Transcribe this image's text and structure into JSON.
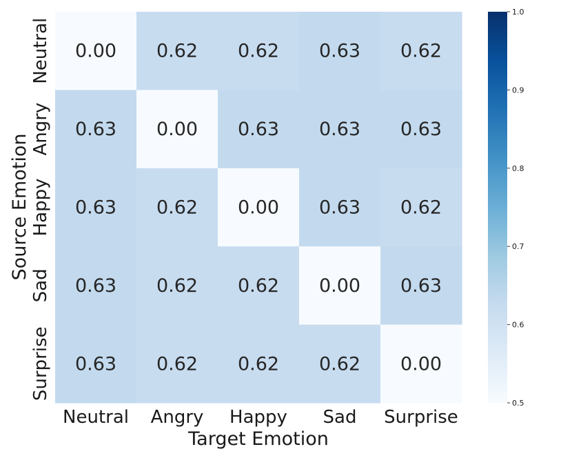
{
  "chart_data": {
    "type": "heatmap",
    "title": "",
    "xlabel": "Target Emotion",
    "ylabel": "Source Emotion",
    "x_categories": [
      "Neutral",
      "Angry",
      "Happy",
      "Sad",
      "Surprise"
    ],
    "y_categories": [
      "Neutral",
      "Angry",
      "Happy",
      "Sad",
      "Surprise"
    ],
    "values": [
      [
        0.0,
        0.62,
        0.62,
        0.63,
        0.62
      ],
      [
        0.63,
        0.0,
        0.63,
        0.63,
        0.63
      ],
      [
        0.63,
        0.62,
        0.0,
        0.63,
        0.62
      ],
      [
        0.63,
        0.62,
        0.62,
        0.0,
        0.63
      ],
      [
        0.63,
        0.62,
        0.62,
        0.62,
        0.0
      ]
    ],
    "colormap": "Blues",
    "colorbar": {
      "range": [
        0.5,
        1.0
      ],
      "ticks": [
        "0.5",
        "0.6",
        "0.7",
        "0.8",
        "0.9",
        "1.0"
      ]
    },
    "grid": false
  }
}
